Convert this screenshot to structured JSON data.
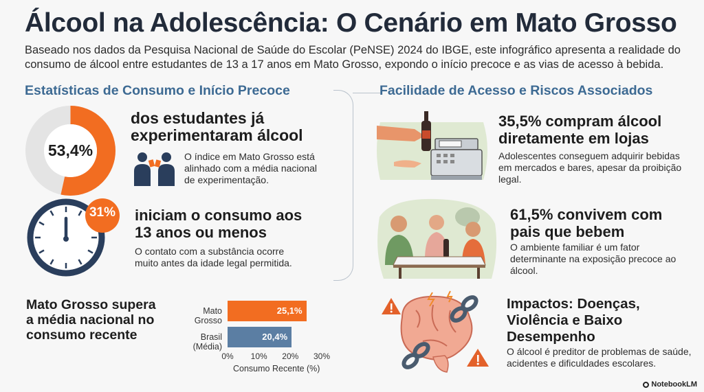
{
  "header": {
    "title": "Álcool na Adolescência: O Cenário em Mato Grosso",
    "subtitle": "Baseado nos dados da Pesquisa Nacional de Saúde do Escolar (PeNSE) 2024 do IBGE, este infográfico apresenta a realidade do consumo de álcool entre estudantes de 13 a 17 anos em Mato Grosso, expondo o início precoce e as vias de acesso à bebida."
  },
  "left": {
    "section_title": "Estatísticas de Consumo e Início Precoce",
    "experimentation": {
      "value": "53,4%",
      "fraction": 0.534,
      "headline": "dos estudantes já experimentaram álcool",
      "description": "O índice em Mato Grosso está alinhado com a média nacional de experimentação."
    },
    "early_start": {
      "badge": "31%",
      "headline": "iniciam o consumo aos 13 anos ou menos",
      "description": "O contato com a substância ocorre muito antes da idade legal permitida."
    },
    "recent": {
      "headline": "Mato Grosso supera a média nacional no consumo recente"
    }
  },
  "chart_data": {
    "type": "bar",
    "orientation": "horizontal",
    "categories": [
      "Mato Grosso",
      "Brasil (Média)"
    ],
    "values": [
      25.1,
      20.4
    ],
    "value_labels": [
      "25,1%",
      "20,4%"
    ],
    "colors": [
      "#f26d21",
      "#5b7ea3"
    ],
    "xlabel": "Consumo Recente (%)",
    "xlim": [
      0,
      30
    ],
    "ticks": [
      "0%",
      "10%",
      "20%",
      "30%"
    ],
    "grid": false
  },
  "right": {
    "section_title": "Facilidade de Acesso e Riscos Associados",
    "stores": {
      "headline": "35,5% compram álcool diretamente em lojas",
      "description": "Adolescentes conseguem adquirir bebidas em mercados e bares, apesar da proibição legal."
    },
    "parents": {
      "headline": "61,5% convivem com pais que bebem",
      "description": "O ambiente familiar é um fator determinante na exposição precoce ao álcool."
    },
    "impacts": {
      "headline": "Impactos: Doenças, Violência e Baixo Desempenho",
      "description": "O álcool é preditor de problemas de saúde, acidentes e dificuldades escolares."
    }
  },
  "footer": {
    "brand": "NotebookLM"
  },
  "colors": {
    "orange": "#f26d21",
    "navy": "#2a3e5c",
    "blue": "#5b7ea3",
    "section": "#3d6a93"
  },
  "icons": [
    "students-toasting-icon",
    "clock-icon",
    "bottle-purchase-icon",
    "cash-register-icon",
    "family-dinner-icon",
    "brain-chain-icon",
    "warning-icon"
  ]
}
